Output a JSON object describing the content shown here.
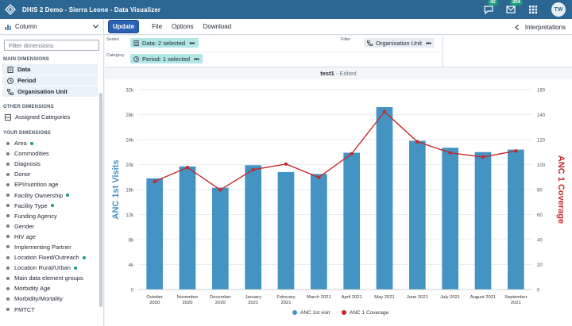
{
  "header": {
    "title": "DHIS 2 Demo - Sierra Leone - Data Visualizer",
    "messages_count": "42",
    "interpretations_count": "204",
    "avatar_initials": "TW",
    "bg_color": "#2c6693"
  },
  "menubar": {
    "vis_type": "Column",
    "update_label": "Update",
    "items": [
      "File",
      "Options",
      "Download"
    ],
    "interpretations_label": "Interpretations"
  },
  "sidebar": {
    "filter_placeholder": "Filter dimensions",
    "main_dimensions_heading": "MAIN DIMENSIONS",
    "main_dimensions": [
      {
        "label": "Data",
        "icon": "data-icon"
      },
      {
        "label": "Period",
        "icon": "clock-icon"
      },
      {
        "label": "Organisation Unit",
        "icon": "org-unit-icon"
      }
    ],
    "other_dimensions_heading": "OTHER DIMENSIONS",
    "other_dimensions": [
      "Assigned Categories"
    ],
    "your_dimensions_heading": "YOUR DIMENSIONS",
    "your_dimensions": [
      {
        "label": "Area",
        "selected": true
      },
      {
        "label": "Commodities",
        "selected": false
      },
      {
        "label": "Diagnosis",
        "selected": false
      },
      {
        "label": "Donor",
        "selected": false
      },
      {
        "label": "EPI/nutrition age",
        "selected": false
      },
      {
        "label": "Facility Ownership",
        "selected": true
      },
      {
        "label": "Facility Type",
        "selected": true
      },
      {
        "label": "Funding Agency",
        "selected": false
      },
      {
        "label": "Gender",
        "selected": false
      },
      {
        "label": "HIV age",
        "selected": false
      },
      {
        "label": "Implementing Partner",
        "selected": false
      },
      {
        "label": "Location Fixed/Outreach",
        "selected": true
      },
      {
        "label": "Location Rural/Urban",
        "selected": true
      },
      {
        "label": "Main data element groups",
        "selected": false
      },
      {
        "label": "Morbidity Age",
        "selected": false
      },
      {
        "label": "Morbidity/Mortality",
        "selected": false
      },
      {
        "label": "PMTCT",
        "selected": false
      }
    ]
  },
  "layout": {
    "series_label": "Series",
    "category_label": "Category",
    "filter_label": "Filter",
    "series_chip": "Data: 2 selected",
    "category_chip": "Period: 1 selected",
    "filter_chip": "Organisation Unit"
  },
  "title_bar": {
    "name": "test1",
    "status": " - Edited"
  },
  "chart_data": {
    "type": "bar",
    "categories": [
      "October 2020",
      "November 2020",
      "December 2020",
      "January 2021",
      "February 2021",
      "March 2021",
      "April 2021",
      "May 2021",
      "June 2021",
      "July 2021",
      "August 2021",
      "September 2021"
    ],
    "series": [
      {
        "name": "ANC 1st visit",
        "type": "bar",
        "axis": "left",
        "color": "#4393c3",
        "values": [
          17800,
          19700,
          16300,
          19900,
          18800,
          18500,
          21900,
          29200,
          23800,
          22700,
          22000,
          22400
        ]
      },
      {
        "name": "ANC 1 Coverage",
        "type": "line",
        "axis": "right",
        "color": "#c5292b",
        "values": [
          86.5,
          97.7,
          79.8,
          95.9,
          100.4,
          89.8,
          108.7,
          142.3,
          118.3,
          109.4,
          106.1,
          110.9
        ]
      }
    ],
    "ylabel": "ANC 1st Visits",
    "y2label": "ANC 1 Coverage",
    "ylim": [
      0,
      32000
    ],
    "y2lim": [
      0,
      160
    ],
    "yticks": [
      0,
      4000,
      8000,
      12000,
      16000,
      20000,
      24000,
      28000,
      32000
    ],
    "ytick_labels": [
      "0",
      "4k",
      "8k",
      "12k",
      "16k",
      "20k",
      "24k",
      "28k",
      "32k"
    ],
    "y2ticks": [
      0,
      20,
      40,
      60,
      80,
      100,
      120,
      140,
      160
    ],
    "y2tick_labels": [
      "0",
      "20",
      "40",
      "60",
      "80",
      "100",
      "120",
      "140",
      "160"
    ],
    "grid": true,
    "legend_position": "bottom-center"
  }
}
